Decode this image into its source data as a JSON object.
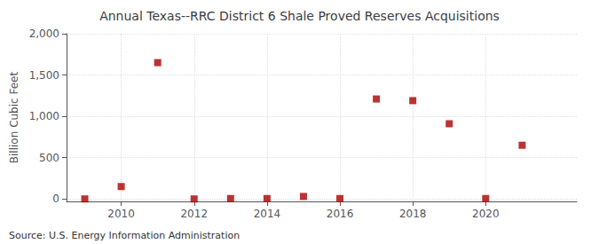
{
  "chart_data": {
    "type": "scatter",
    "title": "Annual Texas--RRC District 6 Shale Proved Reserves Acquisitions",
    "ylabel": "Billion Cubic Feet",
    "annotations": [
      "Source: U.S. Energy Information Administration"
    ],
    "x": [
      2009,
      2010,
      2011,
      2012,
      2013,
      2014,
      2015,
      2016,
      2017,
      2018,
      2019,
      2020,
      2021
    ],
    "values": [
      0,
      150,
      1650,
      0,
      5,
      5,
      30,
      5,
      1210,
      1190,
      910,
      5,
      650
    ],
    "color": "#aa0000",
    "marker": "square",
    "xlim": [
      2008.5,
      2022.5
    ],
    "xticks": [
      2010,
      2012,
      2014,
      2016,
      2018,
      2020
    ],
    "ylim": [
      -30,
      2000
    ],
    "yticks": [
      0,
      500,
      {
        "value": 1000,
        "label": "1,000"
      },
      {
        "value": 1500,
        "label": "1,500"
      },
      {
        "value": 2000,
        "label": "2,000"
      }
    ],
    "grid": true
  }
}
